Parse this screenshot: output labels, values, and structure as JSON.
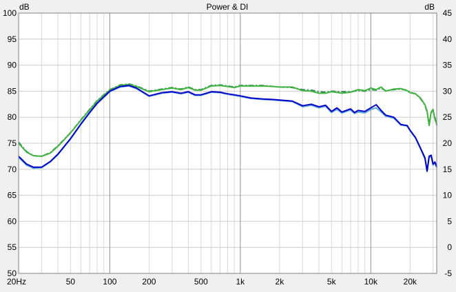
{
  "chart_data": {
    "type": "line",
    "title": "Power & DI",
    "ylabel_left": "dB",
    "ylabel_right": "dB",
    "xscale": "log",
    "xlim": [
      20,
      32000
    ],
    "ylim_left": [
      50,
      100
    ],
    "ylim_right": [
      -5,
      45
    ],
    "grid": true,
    "x_ticks": [
      {
        "value": 20,
        "label": "20Hz"
      },
      {
        "value": 50,
        "label": "50"
      },
      {
        "value": 100,
        "label": "100"
      },
      {
        "value": 200,
        "label": "200"
      },
      {
        "value": 500,
        "label": "500"
      },
      {
        "value": 1000,
        "label": "1k"
      },
      {
        "value": 2000,
        "label": "2k"
      },
      {
        "value": 5000,
        "label": "5k"
      },
      {
        "value": 10000,
        "label": "10k"
      },
      {
        "value": 20000,
        "label": "20k"
      }
    ],
    "y_ticks_left": [
      "100",
      "95",
      "90",
      "85",
      "80",
      "75",
      "70",
      "65",
      "60",
      "55",
      "50"
    ],
    "y_ticks_right": [
      "45",
      "40",
      "35",
      "30",
      "25",
      "20",
      "15",
      "10",
      "5",
      "0",
      "-5"
    ],
    "series": [
      {
        "color": "#2e8b57",
        "style": "dashed",
        "x": [
          20,
          23,
          26,
          30,
          35,
          40,
          50,
          60,
          70,
          80,
          100,
          120,
          140,
          160,
          200,
          250,
          300,
          350,
          400,
          450,
          500,
          600,
          700,
          800,
          900,
          1000,
          1200,
          1500,
          1800,
          2000,
          2500,
          3000,
          3500,
          4000,
          4500,
          5000,
          6000,
          7000,
          8000,
          9000,
          10000,
          11000,
          12000,
          13000,
          15000,
          17000,
          19000,
          20000,
          22000,
          24000,
          26000,
          27000,
          28000,
          29000,
          30000,
          31000,
          32000
        ],
        "y": [
          75.2,
          73.4,
          72.6,
          72.5,
          73.2,
          74.5,
          77.0,
          79.5,
          81.5,
          83.2,
          85.3,
          86.2,
          86.4,
          86.0,
          85.0,
          85.4,
          85.7,
          85.4,
          85.8,
          85.3,
          85.3,
          86.1,
          86.2,
          86.0,
          85.8,
          86.1,
          86.1,
          86.1,
          85.9,
          85.8,
          85.7,
          85.3,
          85.2,
          84.9,
          84.8,
          85.0,
          84.9,
          84.9,
          85.1,
          85.0,
          85.3,
          85.2,
          85.6,
          85.1,
          85.3,
          85.4,
          85.2,
          84.8,
          84.5,
          83.6,
          82.3,
          81.0,
          78.5,
          80.9,
          81.3,
          80.0,
          78.5
        ]
      },
      {
        "color": "#3fb33f",
        "style": "solid",
        "x": [
          20,
          23,
          26,
          30,
          35,
          40,
          50,
          60,
          70,
          80,
          100,
          120,
          140,
          160,
          200,
          250,
          300,
          350,
          400,
          450,
          500,
          600,
          700,
          800,
          900,
          1000,
          1200,
          1500,
          1800,
          2000,
          2500,
          3000,
          3500,
          4000,
          4500,
          5000,
          6000,
          7000,
          8000,
          9000,
          10000,
          11000,
          12000,
          13000,
          15000,
          17000,
          19000,
          20000,
          22000,
          24000,
          26000,
          27000,
          28000,
          29000,
          30000,
          31000,
          32000
        ],
        "y": [
          75.0,
          73.3,
          72.6,
          72.5,
          73.1,
          74.4,
          77.0,
          79.4,
          81.4,
          83.1,
          85.2,
          86.1,
          86.3,
          85.9,
          84.9,
          85.3,
          85.6,
          85.3,
          85.7,
          85.2,
          85.2,
          86.0,
          86.1,
          85.9,
          85.7,
          86.0,
          86.0,
          86.0,
          85.9,
          85.8,
          85.8,
          85.1,
          85.0,
          84.6,
          84.6,
          84.9,
          84.6,
          84.8,
          85.3,
          85.1,
          85.6,
          85.3,
          85.8,
          85.0,
          85.4,
          85.5,
          85.1,
          84.7,
          84.5,
          83.7,
          82.4,
          81.2,
          78.4,
          81.0,
          81.5,
          79.6,
          78.7
        ]
      },
      {
        "color": "#5fa8d3",
        "style": "solid",
        "x": [
          20,
          23,
          26,
          30,
          35,
          40,
          50,
          60,
          70,
          80,
          100,
          120,
          140,
          160,
          200,
          250,
          300,
          350,
          400,
          450,
          500,
          600,
          700,
          800,
          900,
          1000,
          1200,
          1500,
          1800,
          2000,
          2500,
          3000,
          3500,
          4000,
          4500,
          5000,
          5500,
          6000,
          7000,
          7500,
          8000,
          9000,
          10000,
          11000,
          12000,
          13000,
          15000,
          17000,
          19000,
          20000,
          22000,
          24000,
          26000,
          27000,
          28000,
          29000,
          30000,
          31000,
          32000
        ],
        "y": [
          72.3,
          70.8,
          70.2,
          70.3,
          71.4,
          72.8,
          75.8,
          78.6,
          80.8,
          82.6,
          84.9,
          85.8,
          86.0,
          85.5,
          84.0,
          84.6,
          84.8,
          84.5,
          84.8,
          84.2,
          84.2,
          84.8,
          84.7,
          84.4,
          84.2,
          84.0,
          83.6,
          83.4,
          83.3,
          83.2,
          83.0,
          82.0,
          82.3,
          81.8,
          82.1,
          80.9,
          81.5,
          80.8,
          81.4,
          80.7,
          81.0,
          80.8,
          81.5,
          81.8,
          81.0,
          80.2,
          79.8,
          78.5,
          78.3,
          77.4,
          76.0,
          74.0,
          72.0,
          69.5,
          72.3,
          72.5,
          70.8,
          71.2,
          70.3
        ]
      },
      {
        "color": "#0000cd",
        "style": "solid",
        "x": [
          20,
          23,
          26,
          30,
          35,
          40,
          50,
          60,
          70,
          80,
          100,
          120,
          140,
          160,
          200,
          250,
          300,
          350,
          400,
          450,
          500,
          600,
          700,
          800,
          900,
          1000,
          1200,
          1500,
          1800,
          2000,
          2500,
          3000,
          3500,
          4000,
          4500,
          5000,
          5500,
          6000,
          7000,
          7500,
          8000,
          9000,
          10000,
          11000,
          12000,
          13000,
          15000,
          17000,
          19000,
          20000,
          22000,
          24000,
          26000,
          27000,
          28000,
          29000,
          30000,
          31000,
          32000
        ],
        "y": [
          72.5,
          71.0,
          70.4,
          70.4,
          71.5,
          72.9,
          75.9,
          78.7,
          80.9,
          82.7,
          85.0,
          85.9,
          86.1,
          85.6,
          84.1,
          84.7,
          84.9,
          84.6,
          84.9,
          84.3,
          84.3,
          84.9,
          84.8,
          84.5,
          84.3,
          84.1,
          83.7,
          83.5,
          83.4,
          83.3,
          83.1,
          82.2,
          82.5,
          82.0,
          82.3,
          81.1,
          81.8,
          81.0,
          81.6,
          80.9,
          81.3,
          81.1,
          81.8,
          82.4,
          81.3,
          80.4,
          80.0,
          78.6,
          78.4,
          77.5,
          76.1,
          74.1,
          72.2,
          69.7,
          72.5,
          72.7,
          71.0,
          71.4,
          70.5
        ]
      }
    ]
  }
}
